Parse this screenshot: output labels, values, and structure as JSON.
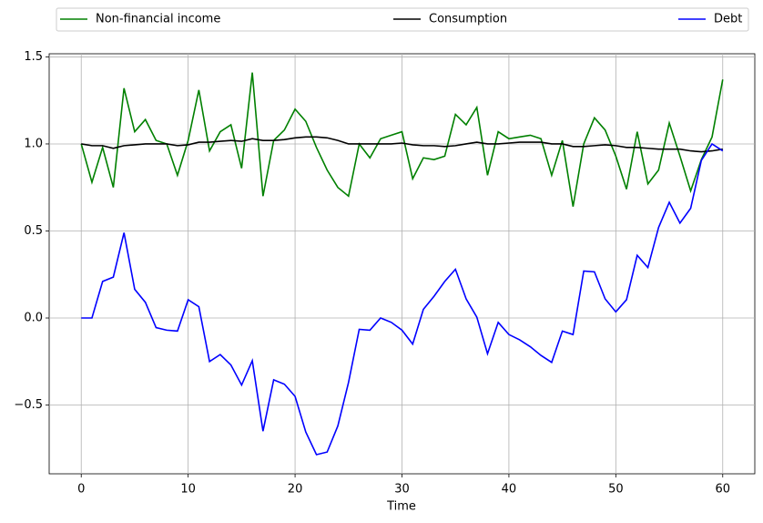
{
  "chart_data": {
    "type": "line",
    "x_label": "Time",
    "x": [
      0,
      1,
      2,
      3,
      4,
      5,
      6,
      7,
      8,
      9,
      10,
      11,
      12,
      13,
      14,
      15,
      16,
      17,
      18,
      19,
      20,
      21,
      22,
      23,
      24,
      25,
      26,
      27,
      28,
      29,
      30,
      31,
      32,
      33,
      34,
      35,
      36,
      37,
      38,
      39,
      40,
      41,
      42,
      43,
      44,
      45,
      46,
      47,
      48,
      49,
      50,
      51,
      52,
      53,
      54,
      55,
      56,
      57,
      58,
      59,
      60
    ],
    "series": [
      {
        "name": "Non-financial income",
        "color": "#008000",
        "values": [
          1.0,
          0.78,
          0.98,
          0.75,
          1.32,
          1.07,
          1.14,
          1.02,
          1.0,
          0.82,
          1.02,
          1.31,
          0.96,
          1.07,
          1.11,
          0.86,
          1.41,
          0.7,
          1.02,
          1.08,
          1.2,
          1.13,
          0.98,
          0.85,
          0.75,
          0.7,
          1.0,
          0.92,
          1.03,
          1.05,
          1.07,
          0.8,
          0.92,
          0.91,
          0.93,
          1.17,
          1.11,
          1.21,
          0.82,
          1.07,
          1.03,
          1.04,
          1.05,
          1.03,
          0.82,
          1.02,
          0.64,
          1.0,
          1.15,
          1.08,
          0.93,
          0.74,
          1.07,
          0.77,
          0.85,
          1.12,
          0.93,
          0.73,
          0.91,
          1.04,
          1.37
        ]
      },
      {
        "name": "Consumption",
        "color": "#000000",
        "values": [
          1.0,
          0.99,
          0.99,
          0.975,
          0.99,
          0.995,
          1.0,
          1.0,
          1.0,
          0.99,
          0.995,
          1.01,
          1.01,
          1.015,
          1.02,
          1.015,
          1.03,
          1.02,
          1.02,
          1.025,
          1.035,
          1.04,
          1.04,
          1.035,
          1.02,
          1.0,
          1.0,
          1.0,
          1.0,
          1.0,
          1.005,
          0.995,
          0.99,
          0.99,
          0.985,
          0.99,
          1.0,
          1.01,
          1.0,
          1.0,
          1.005,
          1.01,
          1.01,
          1.01,
          1.0,
          1.0,
          0.985,
          0.985,
          0.99,
          0.995,
          0.99,
          0.98,
          0.98,
          0.975,
          0.97,
          0.97,
          0.97,
          0.96,
          0.955,
          0.96,
          0.97
        ]
      },
      {
        "name": "Debt",
        "color": "#0000ff",
        "values": [
          0.0,
          0.0,
          0.21,
          0.235,
          0.49,
          0.165,
          0.09,
          -0.055,
          -0.07,
          -0.075,
          0.105,
          0.065,
          -0.25,
          -0.21,
          -0.27,
          -0.385,
          -0.245,
          -0.65,
          -0.355,
          -0.38,
          -0.45,
          -0.655,
          -0.785,
          -0.77,
          -0.62,
          -0.37,
          -0.065,
          -0.07,
          0.0,
          -0.025,
          -0.07,
          -0.15,
          0.05,
          0.125,
          0.21,
          0.28,
          0.11,
          0.005,
          -0.205,
          -0.025,
          -0.095,
          -0.125,
          -0.165,
          -0.215,
          -0.255,
          -0.075,
          -0.095,
          0.27,
          0.265,
          0.11,
          0.035,
          0.105,
          0.36,
          0.29,
          0.52,
          0.665,
          0.545,
          0.63,
          0.905,
          1.0,
          0.96
        ]
      }
    ],
    "xlim": [
      -3,
      63
    ],
    "ylim": [
      -0.895,
      1.518
    ],
    "xticks": [
      0,
      10,
      20,
      30,
      40,
      50,
      60
    ],
    "yticks": [
      {
        "value": -0.5,
        "label": "−0.5"
      },
      {
        "value": 0,
        "label": "0.0"
      },
      0.5,
      {
        "value": 1,
        "label": "1.0"
      },
      1.5
    ],
    "grid": true,
    "legend": "top"
  }
}
